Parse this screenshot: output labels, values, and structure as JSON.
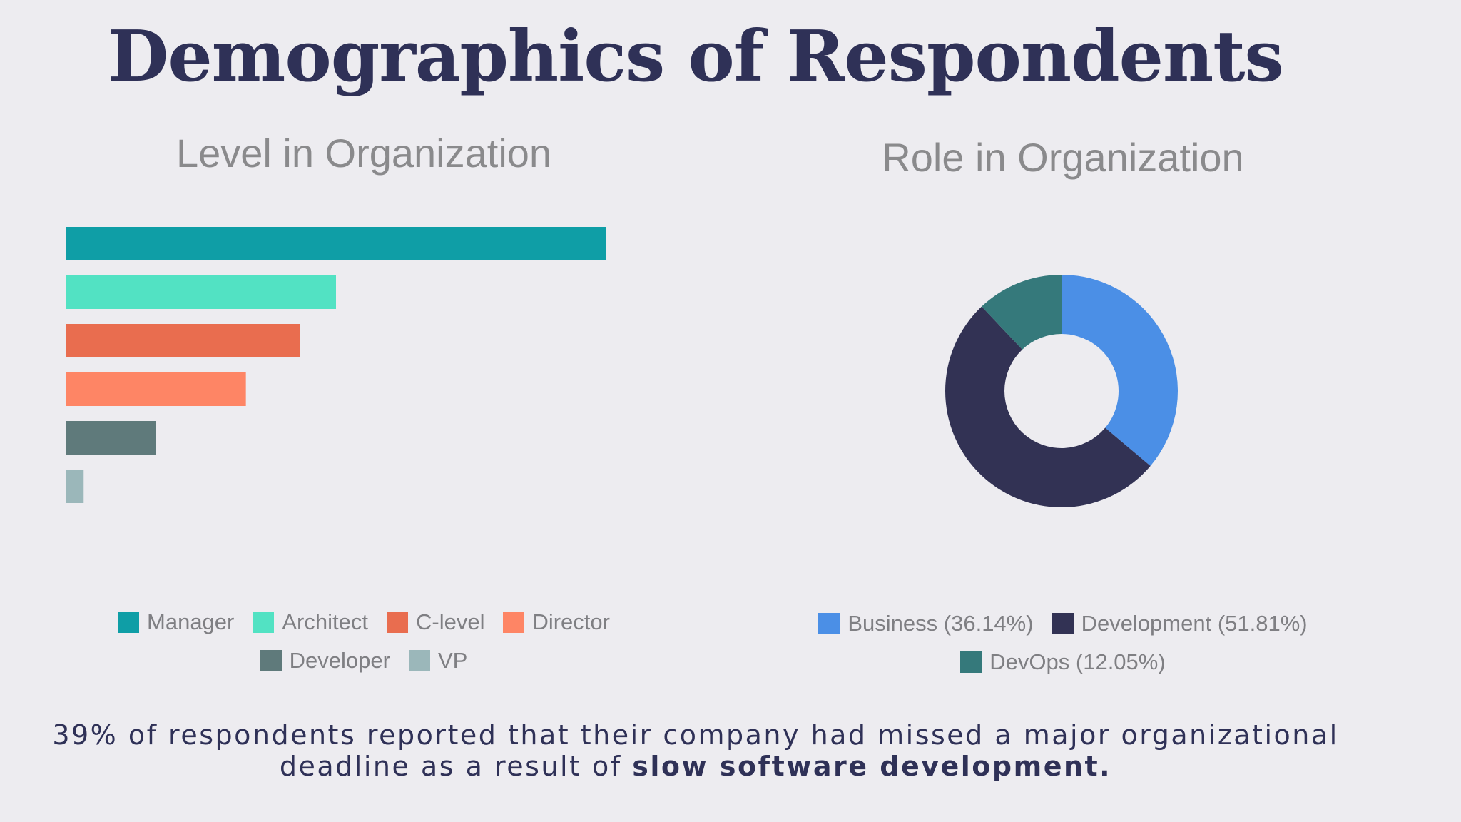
{
  "page": {
    "title": "Demographics of Respondents",
    "footnote_lead": "39% of respondents reported that their company had missed a major organizational deadline as a result of ",
    "footnote_bold": "slow software development."
  },
  "chart_data": [
    {
      "type": "bar",
      "orientation": "horizontal",
      "title": "Level in Organization",
      "categories": [
        "Manager",
        "Architect",
        "C-level",
        "Director",
        "Developer",
        "VP"
      ],
      "values": [
        30,
        15,
        13,
        10,
        5,
        1
      ],
      "colors": [
        "#0f9ea6",
        "#52e2c3",
        "#e96d4f",
        "#fe8565",
        "#5f7a7b",
        "#9bb7ba"
      ],
      "xlim": [
        0,
        30
      ],
      "xlabel": "",
      "ylabel": "",
      "grid": false,
      "legend": "bottom"
    },
    {
      "type": "pie",
      "style": "donut",
      "title": "Role in Organization",
      "categories": [
        "Business",
        "Development",
        "DevOps"
      ],
      "values": [
        36.14,
        51.81,
        12.05
      ],
      "labels": [
        "Business (36.14%)",
        "Development (51.81%)",
        "DevOps (12.05%)"
      ],
      "colors": [
        "#4b8fe6",
        "#323254",
        "#35797b"
      ],
      "legend": "bottom"
    }
  ]
}
